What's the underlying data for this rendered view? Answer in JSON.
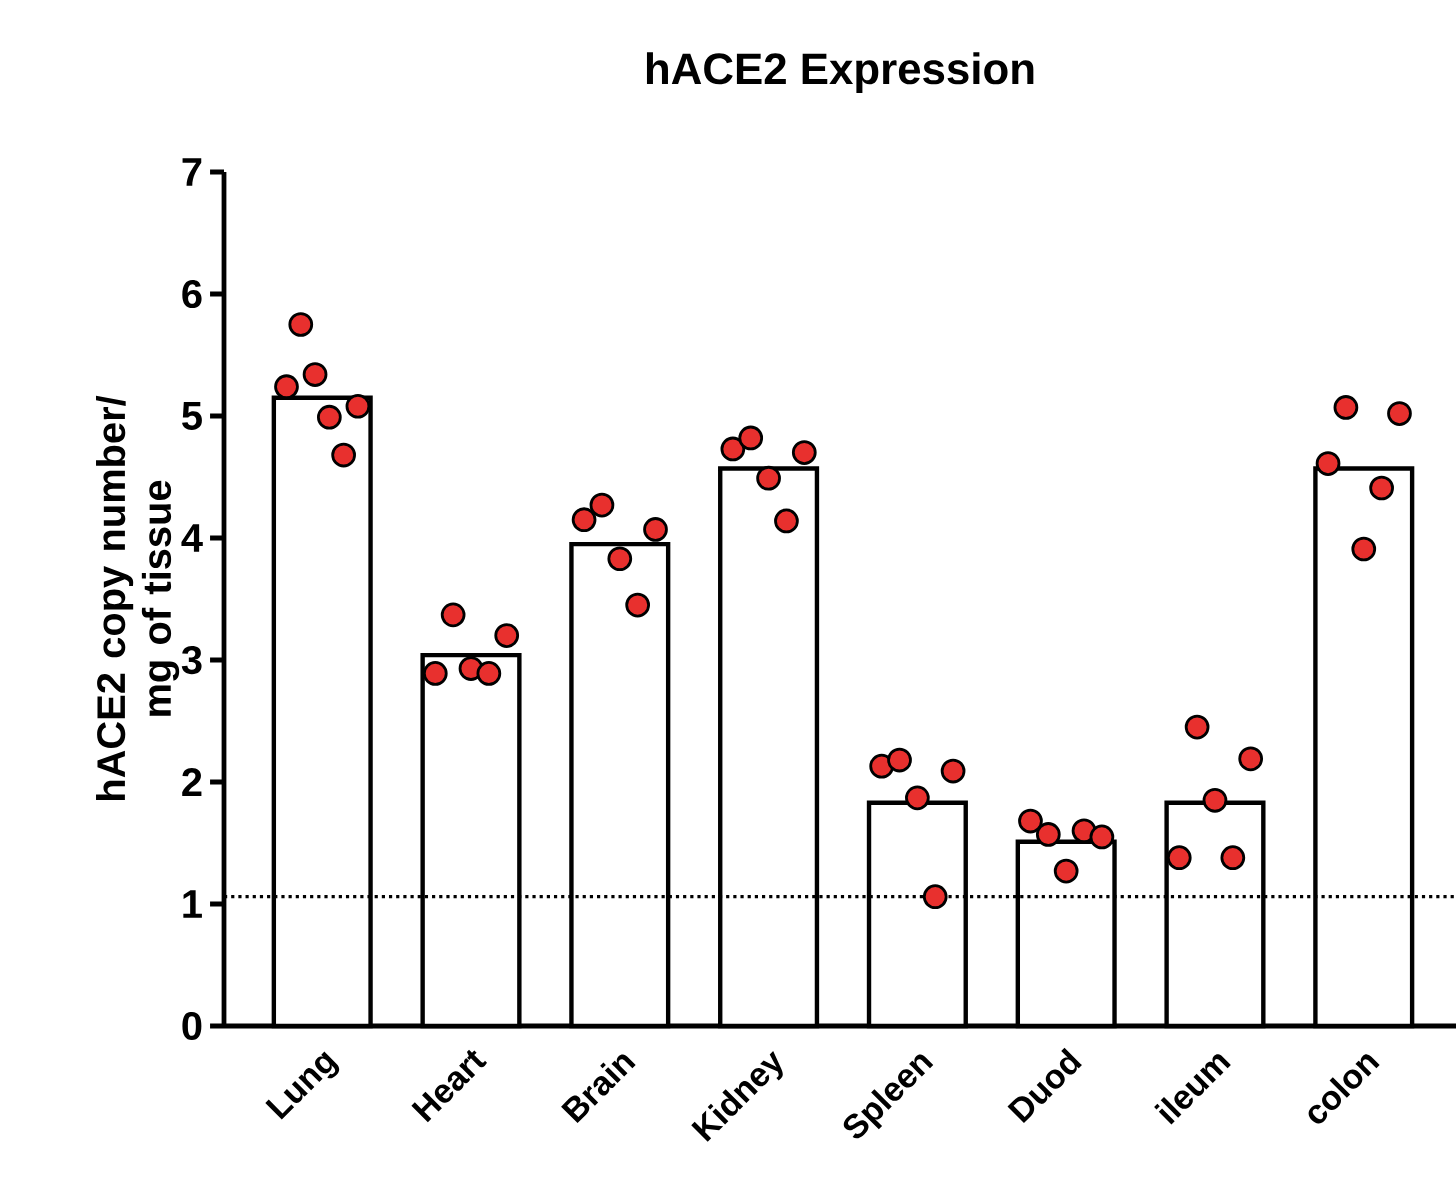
{
  "chart_data": {
    "type": "bar",
    "title": "hACE2 Expression",
    "ylabel": "hACE2 copy number/ mg of tissue",
    "categories": [
      "Lung",
      "Heart",
      "Brain",
      "Kidney",
      "Spleen",
      "Duod",
      "ileum",
      "colon"
    ],
    "series": [
      {
        "color": "#ffffff",
        "values": [
          5.15,
          3.04,
          3.95,
          4.57,
          1.83,
          1.51,
          1.83,
          4.57
        ]
      },
      {
        "type": "scatter",
        "color": "#e8302e",
        "x": [
          "Lung",
          "Lung",
          "Lung",
          "Lung",
          "Lung",
          "Lung",
          "Heart",
          "Heart",
          "Heart",
          "Heart",
          "Heart",
          "Brain",
          "Brain",
          "Brain",
          "Brain",
          "Brain",
          "Kidney",
          "Kidney",
          "Kidney",
          "Kidney",
          "Kidney",
          "Spleen",
          "Spleen",
          "Spleen",
          "Spleen",
          "Spleen",
          "Duod",
          "Duod",
          "Duod",
          "Duod",
          "Duod",
          "ileum",
          "ileum",
          "ileum",
          "ileum",
          "ileum",
          "colon",
          "colon",
          "colon",
          "colon",
          "colon"
        ],
        "values": [
          5.24,
          5.75,
          5.34,
          4.99,
          4.68,
          5.08,
          2.89,
          3.37,
          2.93,
          2.89,
          3.2,
          4.15,
          4.27,
          3.83,
          3.45,
          4.07,
          4.73,
          4.82,
          4.49,
          4.14,
          4.7,
          2.13,
          2.18,
          1.87,
          1.06,
          2.09,
          1.68,
          1.57,
          1.27,
          1.6,
          1.55,
          1.38,
          2.45,
          1.85,
          1.38,
          2.19,
          4.61,
          5.07,
          3.91,
          4.41,
          5.02
        ]
      }
    ],
    "ylim": [
      0,
      7
    ],
    "yticks": [
      0,
      1,
      2,
      3,
      4,
      5,
      6,
      7
    ],
    "ref_lines": [
      {
        "axis": "y",
        "value": 1.06,
        "line_style": "dotted"
      }
    ]
  }
}
